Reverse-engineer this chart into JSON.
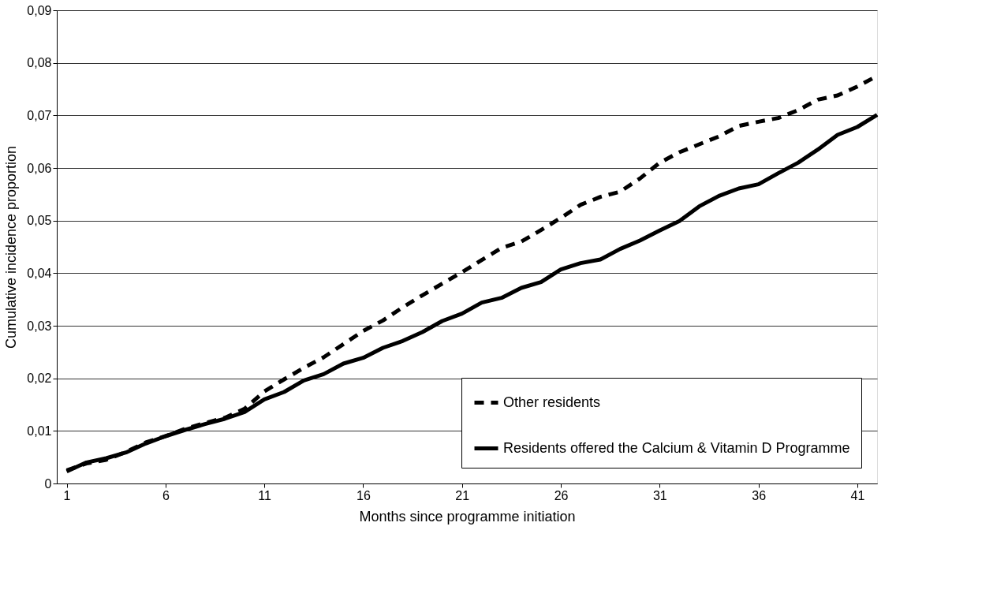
{
  "chart_data": {
    "type": "line",
    "xlabel": "Months since programme initiation",
    "ylabel": "Cumulative incidence proportion",
    "x": [
      1,
      2,
      3,
      4,
      5,
      6,
      7,
      8,
      9,
      10,
      11,
      12,
      13,
      14,
      15,
      16,
      17,
      18,
      19,
      20,
      21,
      22,
      23,
      24,
      25,
      26,
      27,
      28,
      29,
      30,
      31,
      32,
      33,
      34,
      35,
      36,
      37,
      38,
      39,
      40,
      41,
      42
    ],
    "series": [
      {
        "name": "Other residents",
        "color": "#000000",
        "line_style": "dashed",
        "values": [
          0.0025,
          0.0038,
          0.0045,
          0.006,
          0.0078,
          0.009,
          0.0104,
          0.0115,
          0.0125,
          0.0142,
          0.0175,
          0.0198,
          0.022,
          0.024,
          0.0265,
          0.029,
          0.031,
          0.0335,
          0.0358,
          0.038,
          0.0402,
          0.0425,
          0.0448,
          0.046,
          0.0482,
          0.0505,
          0.053,
          0.0545,
          0.0555,
          0.058,
          0.061,
          0.063,
          0.0645,
          0.066,
          0.068,
          0.0688,
          0.0695,
          0.071,
          0.073,
          0.0738,
          0.0755,
          0.0775
        ]
      },
      {
        "name": "Residents offered the Calcium & Vitamin D Programme",
        "color": "#000000",
        "line_style": "solid",
        "values": [
          0.0023,
          0.004,
          0.0048,
          0.0059,
          0.0076,
          0.009,
          0.0102,
          0.0113,
          0.0123,
          0.0136,
          0.016,
          0.0174,
          0.0196,
          0.0208,
          0.0228,
          0.0239,
          0.0258,
          0.0271,
          0.0288,
          0.0309,
          0.0323,
          0.0344,
          0.0353,
          0.0372,
          0.0383,
          0.0407,
          0.0419,
          0.0426,
          0.0446,
          0.0462,
          0.0481,
          0.0499,
          0.0527,
          0.0547,
          0.0561,
          0.0569,
          0.059,
          0.061,
          0.0635,
          0.0663,
          0.0678,
          0.0701
        ]
      }
    ],
    "xlim": [
      0.5,
      42
    ],
    "xticks": [
      1,
      6,
      11,
      16,
      21,
      26,
      31,
      36,
      41
    ],
    "ylim": [
      0,
      0.09
    ],
    "yticks": [
      {
        "value": 0,
        "label": "0"
      },
      {
        "value": 0.01,
        "label": "0,01"
      },
      {
        "value": 0.02,
        "label": "0,02"
      },
      {
        "value": 0.03,
        "label": "0,03"
      },
      {
        "value": 0.04,
        "label": "0,04"
      },
      {
        "value": 0.05,
        "label": "0,05"
      },
      {
        "value": 0.06,
        "label": "0,06"
      },
      {
        "value": 0.07,
        "label": "0,07"
      },
      {
        "value": 0.08,
        "label": "0,08"
      },
      {
        "value": 0.09,
        "label": "0,09"
      }
    ],
    "grid": "y",
    "legend": "bottom right",
    "marker": "none"
  }
}
